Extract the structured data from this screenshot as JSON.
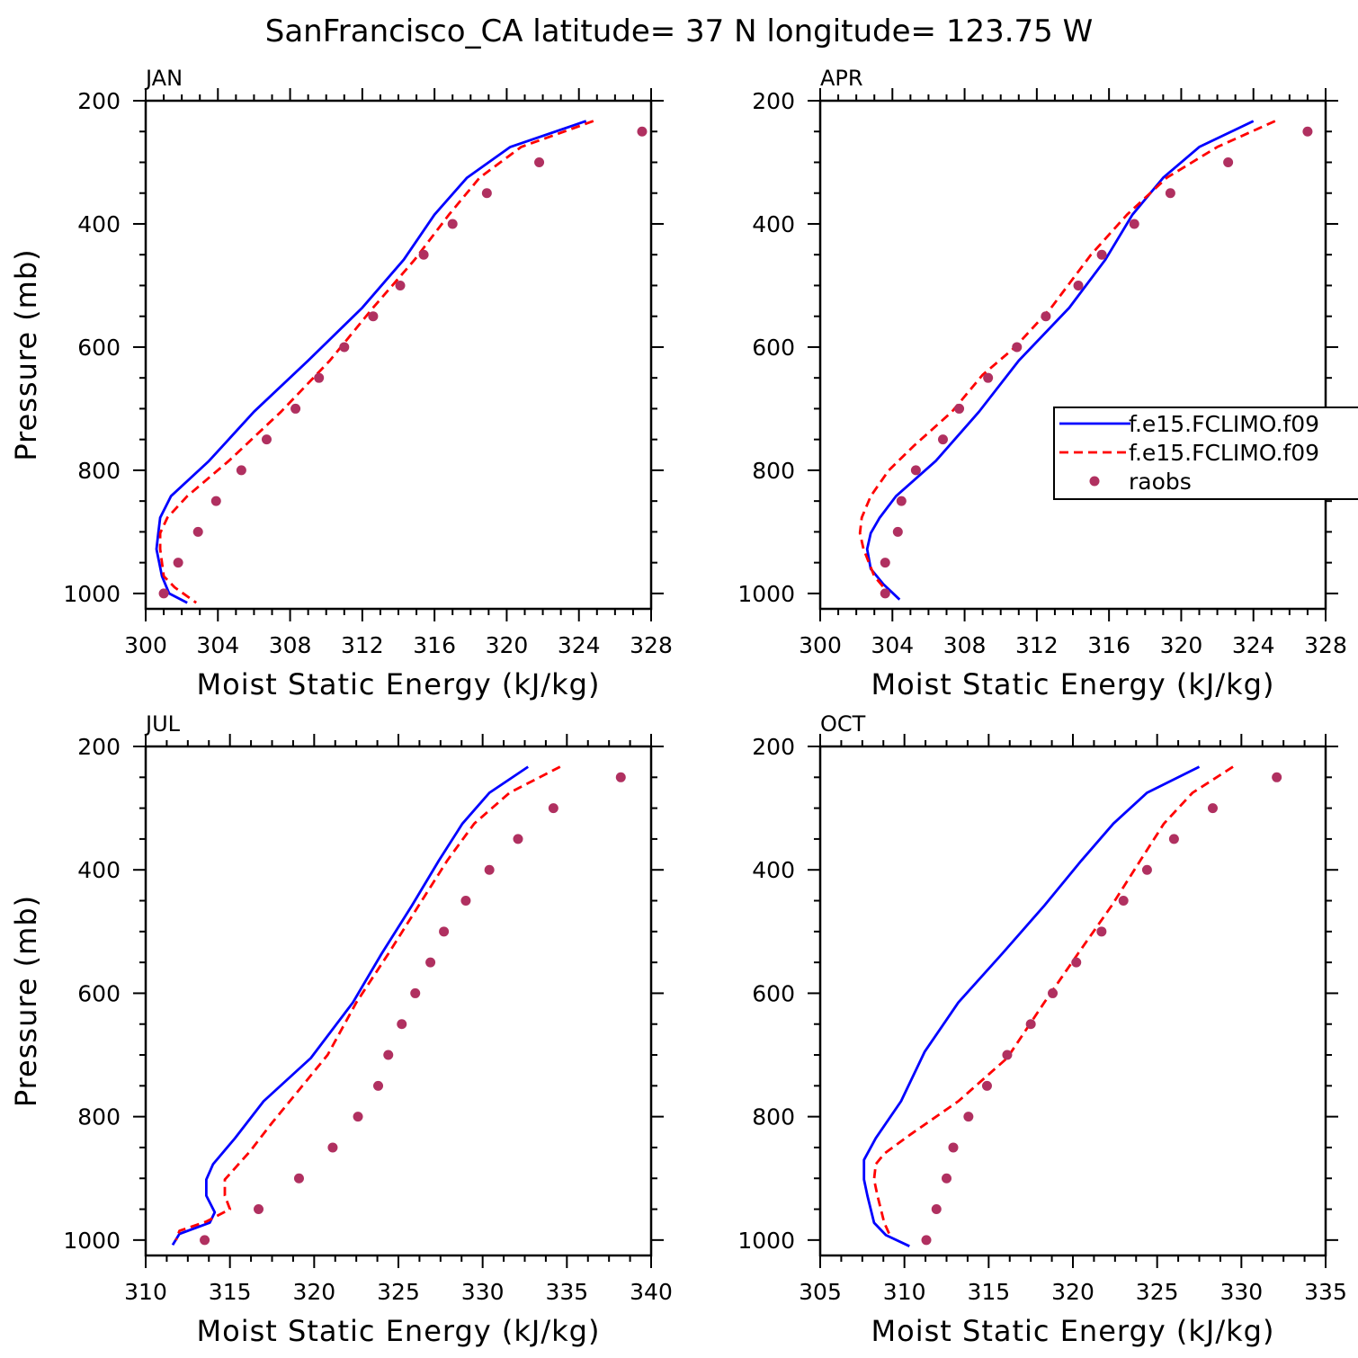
{
  "title": "SanFrancisco_CA  latitude= 37 N longitude= 123.75 W",
  "legend": {
    "entries": [
      {
        "label": "f.e15.FCLIMO.f09",
        "color": "#0000ff",
        "style": "solid"
      },
      {
        "label": "f.e15.FCLIMO.f09",
        "color": "#ff0000",
        "style": "dashed"
      },
      {
        "label": "raobs",
        "color": "#b03060",
        "style": "dots"
      }
    ]
  },
  "chart_data": [
    {
      "type": "line",
      "panel": "JAN",
      "xlabel": "Moist Static Energy (kJ/kg)",
      "ylabel": "Pressure (mb)",
      "xlim": [
        300,
        328
      ],
      "ylim": [
        1025,
        200
      ],
      "xticks": [
        300,
        304,
        308,
        312,
        316,
        320,
        324,
        328
      ],
      "yticks": [
        200,
        400,
        600,
        800,
        1000
      ],
      "series": [
        {
          "name": "f.e15.FCLIMO.f09",
          "points": [
            [
              324.4,
              233
            ],
            [
              320.2,
              275
            ],
            [
              317.8,
              325
            ],
            [
              316,
              385
            ],
            [
              314.3,
              458
            ],
            [
              312,
              536
            ],
            [
              309,
              622
            ],
            [
              306,
              705
            ],
            [
              303.5,
              785
            ],
            [
              301.4,
              842
            ],
            [
              300.8,
              877
            ],
            [
              300.7,
              902
            ],
            [
              300.6,
              928
            ],
            [
              300.9,
              972
            ],
            [
              301.3,
              1000
            ],
            [
              302.3,
              1015
            ]
          ]
        },
        {
          "name": "f.e15.FCLIMO.f09",
          "points": [
            [
              324.8,
              233
            ],
            [
              320.8,
              275
            ],
            [
              318.5,
              325
            ],
            [
              316.8,
              385
            ],
            [
              314.9,
              458
            ],
            [
              312.6,
              536
            ],
            [
              310.2,
              622
            ],
            [
              307.5,
              705
            ],
            [
              304.6,
              785
            ],
            [
              302.3,
              842
            ],
            [
              301.2,
              877
            ],
            [
              300.8,
              902
            ],
            [
              300.8,
              928
            ],
            [
              301,
              972
            ],
            [
              301.6,
              990
            ],
            [
              302.8,
              1015
            ]
          ]
        },
        {
          "name": "raobs",
          "points": [
            [
              327.5,
              250
            ],
            [
              321.8,
              300
            ],
            [
              318.9,
              350
            ],
            [
              317,
              400
            ],
            [
              315.4,
              450
            ],
            [
              314.1,
              500
            ],
            [
              312.6,
              550
            ],
            [
              311,
              600
            ],
            [
              309.6,
              650
            ],
            [
              308.3,
              700
            ],
            [
              306.7,
              750
            ],
            [
              305.3,
              800
            ],
            [
              303.9,
              850
            ],
            [
              302.9,
              900
            ],
            [
              301.8,
              950
            ],
            [
              301,
              1000
            ]
          ]
        }
      ]
    },
    {
      "type": "line",
      "panel": "APR",
      "xlabel": "Moist Static Energy (kJ/kg)",
      "ylabel": "",
      "xlim": [
        300,
        328
      ],
      "ylim": [
        1025,
        200
      ],
      "xticks": [
        300,
        304,
        308,
        312,
        316,
        320,
        324,
        328
      ],
      "yticks": [
        200,
        400,
        600,
        800,
        1000
      ],
      "series": [
        {
          "name": "f.e15.FCLIMO.f09",
          "points": [
            [
              324,
              233
            ],
            [
              321,
              275
            ],
            [
              319,
              325
            ],
            [
              317.3,
              385
            ],
            [
              315.8,
              458
            ],
            [
              313.8,
              536
            ],
            [
              311,
              622
            ],
            [
              308.8,
              705
            ],
            [
              306.4,
              785
            ],
            [
              304.2,
              842
            ],
            [
              303.3,
              877
            ],
            [
              302.8,
              902
            ],
            [
              302.6,
              928
            ],
            [
              302.8,
              960
            ],
            [
              303.5,
              985
            ],
            [
              304.4,
              1010
            ]
          ]
        },
        {
          "name": "f.e15.FCLIMO.f09",
          "points": [
            [
              325.2,
              233
            ],
            [
              322,
              275
            ],
            [
              319.2,
              325
            ],
            [
              317,
              385
            ],
            [
              315,
              450
            ],
            [
              312.8,
              536
            ],
            [
              310.8,
              600
            ],
            [
              309,
              645
            ],
            [
              307.3,
              705
            ],
            [
              305.2,
              760
            ],
            [
              303.8,
              800
            ],
            [
              302.8,
              842
            ],
            [
              302.3,
              877
            ],
            [
              302.2,
              902
            ],
            [
              302.4,
              928
            ],
            [
              303,
              972
            ],
            [
              303.8,
              1000
            ]
          ]
        },
        {
          "name": "raobs",
          "points": [
            [
              327,
              250
            ],
            [
              322.6,
              300
            ],
            [
              319.4,
              350
            ],
            [
              317.4,
              400
            ],
            [
              315.6,
              450
            ],
            [
              314.3,
              500
            ],
            [
              312.5,
              550
            ],
            [
              310.9,
              600
            ],
            [
              309.3,
              650
            ],
            [
              307.7,
              700
            ],
            [
              306.8,
              750
            ],
            [
              305.3,
              800
            ],
            [
              304.5,
              850
            ],
            [
              304.3,
              900
            ],
            [
              303.6,
              950
            ],
            [
              303.6,
              1000
            ]
          ]
        }
      ]
    },
    {
      "type": "line",
      "panel": "JUL",
      "xlabel": "Moist Static Energy (kJ/kg)",
      "ylabel": "Pressure (mb)",
      "xlim": [
        310,
        340
      ],
      "ylim": [
        1025,
        200
      ],
      "xticks": [
        310,
        315,
        320,
        325,
        330,
        335,
        340
      ],
      "yticks": [
        200,
        400,
        600,
        800,
        1000
      ],
      "series": [
        {
          "name": "f.e15.FCLIMO.f09",
          "points": [
            [
              332.7,
              233
            ],
            [
              330.4,
              275
            ],
            [
              328.8,
              325
            ],
            [
              327.4,
              385
            ],
            [
              325.8,
              458
            ],
            [
              324,
              536
            ],
            [
              322.3,
              615
            ],
            [
              319.8,
              705
            ],
            [
              317,
              775
            ],
            [
              315.3,
              835
            ],
            [
              314,
              877
            ],
            [
              313.6,
              902
            ],
            [
              313.6,
              928
            ],
            [
              314.1,
              955
            ],
            [
              313.8,
              972
            ],
            [
              312,
              990
            ],
            [
              311.6,
              1008
            ]
          ]
        },
        {
          "name": "f.e15.FCLIMO.f09",
          "points": [
            [
              334.6,
              233
            ],
            [
              331.6,
              275
            ],
            [
              329.5,
              325
            ],
            [
              327.9,
              385
            ],
            [
              326.2,
              458
            ],
            [
              324.4,
              536
            ],
            [
              322.5,
              615
            ],
            [
              320.8,
              700
            ],
            [
              319,
              760
            ],
            [
              317.5,
              810
            ],
            [
              316.2,
              856
            ],
            [
              314.7,
              902
            ],
            [
              314.7,
              928
            ],
            [
              315,
              950
            ],
            [
              313.6,
              970
            ],
            [
              312,
              985
            ],
            [
              311.8,
              1000
            ]
          ]
        },
        {
          "name": "raobs",
          "points": [
            [
              338.2,
              250
            ],
            [
              334.2,
              300
            ],
            [
              332.1,
              350
            ],
            [
              330.4,
              400
            ],
            [
              329,
              450
            ],
            [
              327.7,
              500
            ],
            [
              326.9,
              550
            ],
            [
              326,
              600
            ],
            [
              325.2,
              650
            ],
            [
              324.4,
              700
            ],
            [
              323.8,
              750
            ],
            [
              322.6,
              800
            ],
            [
              321.1,
              850
            ],
            [
              319.1,
              900
            ],
            [
              316.7,
              950
            ],
            [
              313.5,
              1000
            ]
          ]
        }
      ]
    },
    {
      "type": "line",
      "panel": "OCT",
      "xlabel": "Moist Static Energy (kJ/kg)",
      "ylabel": "",
      "xlim": [
        305,
        335
      ],
      "ylim": [
        1025,
        200
      ],
      "xticks": [
        305,
        310,
        315,
        320,
        325,
        330,
        335
      ],
      "yticks": [
        200,
        400,
        600,
        800,
        1000
      ],
      "series": [
        {
          "name": "f.e15.FCLIMO.f09",
          "points": [
            [
              327.5,
              233
            ],
            [
              324.4,
              275
            ],
            [
              322.4,
              325
            ],
            [
              320.5,
              385
            ],
            [
              318.3,
              458
            ],
            [
              315.8,
              536
            ],
            [
              313.2,
              615
            ],
            [
              311.2,
              695
            ],
            [
              309.8,
              775
            ],
            [
              308.3,
              835
            ],
            [
              307.6,
              870
            ],
            [
              307.6,
              902
            ],
            [
              307.8,
              928
            ],
            [
              308.2,
              972
            ],
            [
              308.9,
              992
            ],
            [
              310.3,
              1010
            ]
          ]
        },
        {
          "name": "f.e15.FCLIMO.f09",
          "points": [
            [
              329.5,
              233
            ],
            [
              327.1,
              275
            ],
            [
              325.4,
              325
            ],
            [
              324,
              385
            ],
            [
              322.3,
              458
            ],
            [
              320.3,
              536
            ],
            [
              318.3,
              615
            ],
            [
              316.1,
              705
            ],
            [
              313.2,
              775
            ],
            [
              310.3,
              830
            ],
            [
              308.8,
              860
            ],
            [
              308.3,
              877
            ],
            [
              308.2,
              902
            ],
            [
              308.4,
              928
            ],
            [
              308.8,
              972
            ],
            [
              309.1,
              990
            ]
          ]
        },
        {
          "name": "raobs",
          "points": [
            [
              332.1,
              250
            ],
            [
              328.3,
              300
            ],
            [
              326,
              350
            ],
            [
              324.4,
              400
            ],
            [
              323,
              450
            ],
            [
              321.7,
              500
            ],
            [
              320.2,
              550
            ],
            [
              318.8,
              600
            ],
            [
              317.5,
              650
            ],
            [
              316.1,
              700
            ],
            [
              314.9,
              750
            ],
            [
              313.8,
              800
            ],
            [
              312.9,
              850
            ],
            [
              312.5,
              900
            ],
            [
              311.9,
              950
            ],
            [
              311.3,
              1000
            ]
          ]
        }
      ]
    }
  ]
}
